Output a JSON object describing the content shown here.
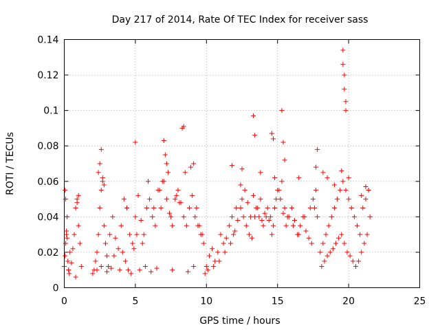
{
  "chart_data": {
    "type": "scatter",
    "title": "Day 217 of 2014, Rate Of TEC Index for receiver sass",
    "xlabel": "GPS time / hours",
    "ylabel": "ROTI / TECUs",
    "xlim": [
      0,
      25
    ],
    "ylim": [
      0,
      0.14
    ],
    "xticks": [
      0,
      5,
      10,
      15,
      20,
      25
    ],
    "yticks": [
      0,
      0.02,
      0.04,
      0.06,
      0.08,
      0.1,
      0.12,
      0.14
    ],
    "xtick_labels": [
      "0",
      "5",
      "10",
      "15",
      "20",
      "25"
    ],
    "ytick_labels": [
      "0",
      "0.02",
      "0.04",
      "0.06",
      "0.08",
      "0.1",
      "0.12",
      "0.14"
    ],
    "grid": true,
    "marker": "+",
    "color": "#ff0000",
    "series": [
      {
        "name": "ROTI",
        "x": [
          0.0,
          0.05,
          0.1,
          0.15,
          0.2,
          0.25,
          0.3,
          0.35,
          0.4,
          0.5,
          0.6,
          0.7,
          0.8,
          0.9,
          1.0,
          1.1,
          1.2,
          0.1,
          0.2,
          0.9,
          1.0,
          0.05,
          0.15,
          0.3,
          0.8,
          2.1,
          2.2,
          2.3,
          2.4,
          2.5,
          2.6,
          2.7,
          2.8,
          2.9,
          3.0,
          3.2,
          3.4,
          3.6,
          3.8,
          4.0,
          4.2,
          4.4,
          4.6,
          4.8,
          5.0,
          5.2,
          5.4,
          5.6,
          5.8,
          6.0,
          6.2,
          6.4,
          6.6,
          6.8,
          7.0,
          7.2,
          7.4,
          7.6,
          7.8,
          8.0,
          8.2,
          8.4,
          8.6,
          8.8,
          9.0,
          9.2,
          9.4,
          9.6,
          9.8,
          2.4,
          2.5,
          2.6,
          2.7,
          2.8,
          3.1,
          3.5,
          4.1,
          4.3,
          4.5,
          4.9,
          5.0,
          5.1,
          5.5,
          5.9,
          6.3,
          6.7,
          6.9,
          7.0,
          7.1,
          7.2,
          7.3,
          7.5,
          7.9,
          8.1,
          8.3,
          8.4,
          8.5,
          8.9,
          9.1,
          9.3,
          9.5,
          9.7,
          2.0,
          2.3,
          2.6,
          3.0,
          3.3,
          3.9,
          4.7,
          5.3,
          5.7,
          6.1,
          6.5,
          7.6,
          8.7,
          9.1,
          9.9,
          10.0,
          10.2,
          10.4,
          10.6,
          10.8,
          11.0,
          11.2,
          11.4,
          11.6,
          11.8,
          12.0,
          12.2,
          12.4,
          12.6,
          12.8,
          13.0,
          13.2,
          13.4,
          13.6,
          13.8,
          14.0,
          14.2,
          14.4,
          14.6,
          14.8,
          15.0,
          15.2,
          15.4,
          15.6,
          15.8,
          16.0,
          16.2,
          16.4,
          16.6,
          16.8,
          17.0,
          17.2,
          17.4,
          17.6,
          17.8,
          10.1,
          10.5,
          10.9,
          11.3,
          11.7,
          11.9,
          12.1,
          12.5,
          12.7,
          12.9,
          13.1,
          13.3,
          13.5,
          13.7,
          13.9,
          14.1,
          14.3,
          14.5,
          14.7,
          14.9,
          15.1,
          15.3,
          15.5,
          15.7,
          16.1,
          16.5,
          16.9,
          17.3,
          17.5,
          17.7,
          11.8,
          12.4,
          12.5,
          13.3,
          13.4,
          13.8,
          14.6,
          14.7,
          14.8,
          15.3,
          15.4,
          15.5,
          16.5,
          17.7,
          17.8,
          18.0,
          18.2,
          18.4,
          18.6,
          18.8,
          19.0,
          19.2,
          19.4,
          19.6,
          19.8,
          20.0,
          20.2,
          20.4,
          20.6,
          20.8,
          21.0,
          21.2,
          21.4,
          21.5,
          18.1,
          18.3,
          18.5,
          18.7,
          18.9,
          19.1,
          19.3,
          19.5,
          19.7,
          19.9,
          20.1,
          20.3,
          20.5,
          20.7,
          20.9,
          21.1,
          21.3,
          18.2,
          18.5,
          19.0,
          19.5,
          19.6,
          19.6,
          19.7,
          19.7,
          19.8,
          19.8,
          20.0,
          20.9,
          21.2,
          21.4
        ],
        "y": [
          0.012,
          0.018,
          0.025,
          0.032,
          0.028,
          0.015,
          0.01,
          0.008,
          0.02,
          0.014,
          0.022,
          0.03,
          0.045,
          0.05,
          0.035,
          0.025,
          0.012,
          0.05,
          0.04,
          0.048,
          0.052,
          0.055,
          0.03,
          0.01,
          0.006,
          0.01,
          0.015,
          0.02,
          0.03,
          0.045,
          0.055,
          0.06,
          0.035,
          0.025,
          0.018,
          0.03,
          0.04,
          0.028,
          0.022,
          0.035,
          0.05,
          0.045,
          0.03,
          0.025,
          0.04,
          0.052,
          0.038,
          0.03,
          0.045,
          0.05,
          0.04,
          0.035,
          0.055,
          0.045,
          0.06,
          0.05,
          0.042,
          0.035,
          0.05,
          0.055,
          0.048,
          0.04,
          0.035,
          0.045,
          0.052,
          0.04,
          0.035,
          0.03,
          0.025,
          0.065,
          0.07,
          0.078,
          0.062,
          0.058,
          0.012,
          0.018,
          0.02,
          0.015,
          0.01,
          0.022,
          0.082,
          0.03,
          0.025,
          0.06,
          0.045,
          0.055,
          0.06,
          0.083,
          0.075,
          0.07,
          0.065,
          0.04,
          0.052,
          0.048,
          0.09,
          0.091,
          0.065,
          0.068,
          0.07,
          0.045,
          0.035,
          0.03,
          0.008,
          0.01,
          0.012,
          0.009,
          0.011,
          0.01,
          0.008,
          0.01,
          0.012,
          0.009,
          0.011,
          0.01,
          0.009,
          0.012,
          0.008,
          0.012,
          0.018,
          0.022,
          0.015,
          0.02,
          0.03,
          0.025,
          0.028,
          0.035,
          0.04,
          0.032,
          0.038,
          0.045,
          0.04,
          0.035,
          0.03,
          0.028,
          0.04,
          0.045,
          0.05,
          0.035,
          0.04,
          0.038,
          0.03,
          0.045,
          0.055,
          0.05,
          0.042,
          0.035,
          0.04,
          0.045,
          0.038,
          0.03,
          0.035,
          0.04,
          0.032,
          0.028,
          0.025,
          0.045,
          0.04,
          0.01,
          0.012,
          0.015,
          0.02,
          0.025,
          0.03,
          0.045,
          0.05,
          0.055,
          0.048,
          0.04,
          0.052,
          0.045,
          0.04,
          0.038,
          0.042,
          0.045,
          0.04,
          0.035,
          0.05,
          0.055,
          0.06,
          0.045,
          0.04,
          0.035,
          0.03,
          0.04,
          0.045,
          0.05,
          0.055,
          0.069,
          0.058,
          0.067,
          0.097,
          0.086,
          0.065,
          0.087,
          0.084,
          0.062,
          0.1,
          0.082,
          0.072,
          0.062,
          0.068,
          0.078,
          0.02,
          0.025,
          0.03,
          0.035,
          0.04,
          0.045,
          0.05,
          0.055,
          0.06,
          0.055,
          0.05,
          0.045,
          0.04,
          0.035,
          0.03,
          0.045,
          0.05,
          0.055,
          0.04,
          0.012,
          0.015,
          0.018,
          0.02,
          0.022,
          0.025,
          0.028,
          0.03,
          0.025,
          0.02,
          0.018,
          0.015,
          0.012,
          0.015,
          0.02,
          0.025,
          0.03,
          0.065,
          0.062,
          0.058,
          0.066,
          0.134,
          0.126,
          0.12,
          0.112,
          0.105,
          0.1,
          0.062,
          0.052,
          0.057,
          0.055
        ]
      }
    ]
  }
}
